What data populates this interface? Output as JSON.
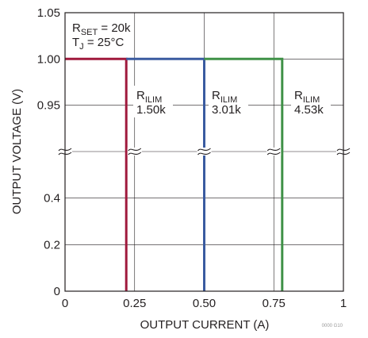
{
  "chart_data": {
    "type": "line",
    "xlabel": "OUTPUT CURRENT (A)",
    "ylabel": "OUTPUT VOLTAGE (V)",
    "xlim": [
      0,
      1
    ],
    "x_ticks": [
      "0",
      "0.25",
      "0.50",
      "0.75",
      "1"
    ],
    "y_ticks_upper": [
      "0.95",
      "1.00",
      "1.05"
    ],
    "y_ticks_lower": [
      "0",
      "0.2",
      "0.4"
    ],
    "broken_y_axis": true,
    "grid": true,
    "conditions": {
      "rset_sym": "R",
      "rset_sub": "SET",
      "rset_val": " = 20k",
      "tj_sym": "T",
      "tj_sub": "J",
      "tj_val": " = 25°C"
    },
    "series": [
      {
        "name_sym": "R",
        "name_sub": "ILIM",
        "name_val": "1.50k",
        "color": "#a0193c",
        "points": [
          [
            0,
            1.0
          ],
          [
            0.22,
            1.0
          ],
          [
            0.22,
            0
          ]
        ]
      },
      {
        "name_sym": "R",
        "name_sub": "ILIM",
        "name_val": "3.01k",
        "color": "#3a5ba0",
        "points": [
          [
            0.22,
            1.0
          ],
          [
            0.5,
            1.0
          ],
          [
            0.5,
            0
          ]
        ]
      },
      {
        "name_sym": "R",
        "name_sub": "ILIM",
        "name_val": "4.53k",
        "color": "#3f9147",
        "points": [
          [
            0.5,
            1.0
          ],
          [
            0.78,
            1.0
          ],
          [
            0.78,
            0
          ]
        ]
      }
    ],
    "figure_id": "0000 G10"
  }
}
